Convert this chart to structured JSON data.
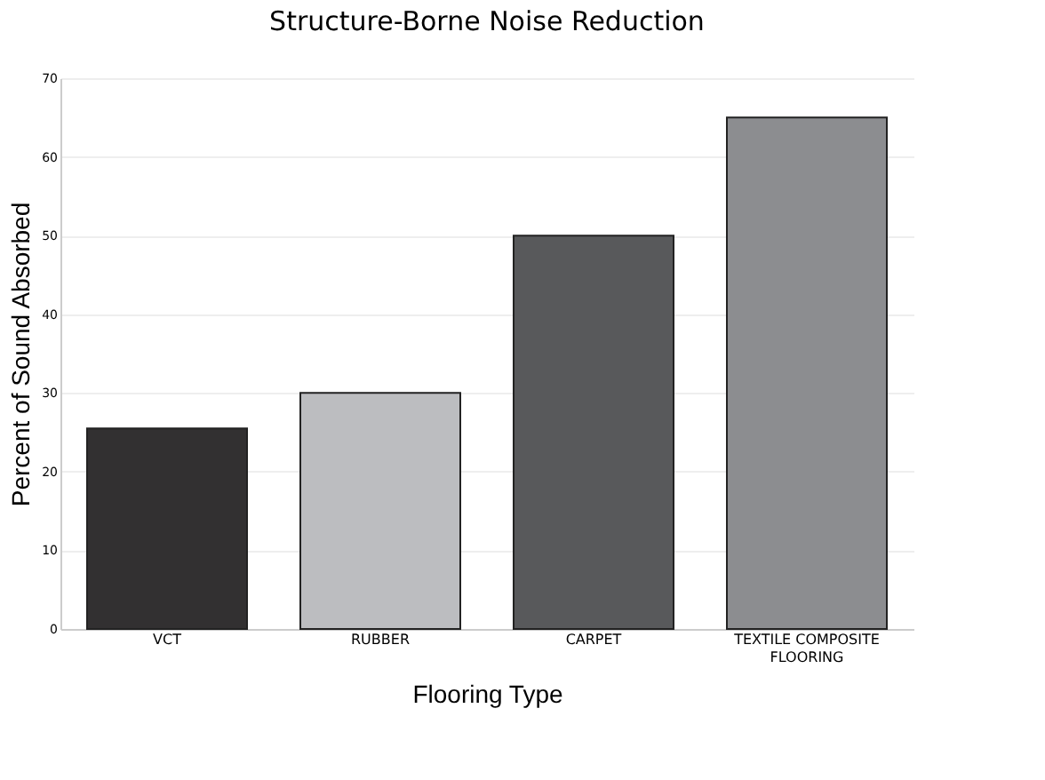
{
  "chart_data": {
    "type": "bar",
    "title": "Structure-Borne Noise Reduction",
    "xlabel": "Flooring Type",
    "ylabel": "Percent of Sound Absorbed",
    "categories": [
      "VCT",
      "RUBBER",
      "CARPET",
      "TEXTILE COMPOSITE FLOORING"
    ],
    "values": [
      25.5,
      30,
      50,
      65
    ],
    "colors": [
      "#323031",
      "#bcbdc0",
      "#58595b",
      "#8c8d90"
    ],
    "ylim": [
      0,
      70
    ],
    "yticks": [
      0,
      10,
      20,
      30,
      40,
      50,
      60,
      70
    ],
    "grid": "y"
  }
}
